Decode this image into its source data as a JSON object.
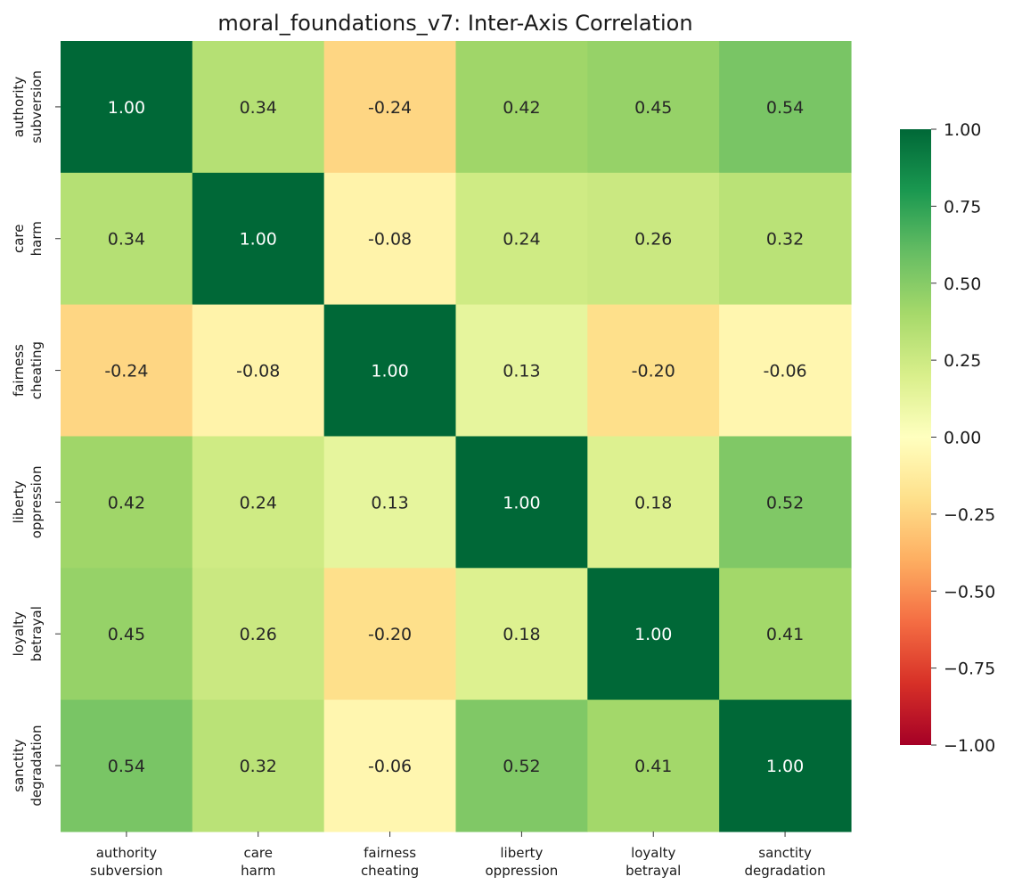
{
  "chart_data": {
    "type": "heatmap",
    "title": "moral_foundations_v7: Inter-Axis Correlation",
    "row_labels": [
      [
        "authority",
        "subversion"
      ],
      [
        "care",
        "harm"
      ],
      [
        "fairness",
        "cheating"
      ],
      [
        "liberty",
        "oppression"
      ],
      [
        "loyalty",
        "betrayal"
      ],
      [
        "sanctity",
        "degradation"
      ]
    ],
    "col_labels": [
      [
        "authority",
        "subversion"
      ],
      [
        "care",
        "harm"
      ],
      [
        "fairness",
        "cheating"
      ],
      [
        "liberty",
        "oppression"
      ],
      [
        "loyalty",
        "betrayal"
      ],
      [
        "sanctity",
        "degradation"
      ]
    ],
    "values": [
      [
        1.0,
        0.34,
        -0.24,
        0.42,
        0.45,
        0.54
      ],
      [
        0.34,
        1.0,
        -0.08,
        0.24,
        0.26,
        0.32
      ],
      [
        -0.24,
        -0.08,
        1.0,
        0.13,
        -0.2,
        -0.06
      ],
      [
        0.42,
        0.24,
        0.13,
        1.0,
        0.18,
        0.52
      ],
      [
        0.45,
        0.26,
        -0.2,
        0.18,
        1.0,
        0.41
      ],
      [
        0.54,
        0.32,
        -0.06,
        0.52,
        0.41,
        1.0
      ]
    ],
    "value_format": "0.00",
    "colormap": "RdYlGn",
    "vmin": -1.0,
    "vmax": 1.0,
    "colorbar": {
      "ticks": [
        1.0,
        0.75,
        0.5,
        0.25,
        0.0,
        -0.25,
        -0.5,
        -0.75,
        -1.0
      ],
      "tick_labels": [
        "1.00",
        "0.75",
        "0.50",
        "0.25",
        "0.00",
        "−0.25",
        "−0.50",
        "−0.75",
        "−1.00"
      ],
      "placement": "right"
    }
  }
}
